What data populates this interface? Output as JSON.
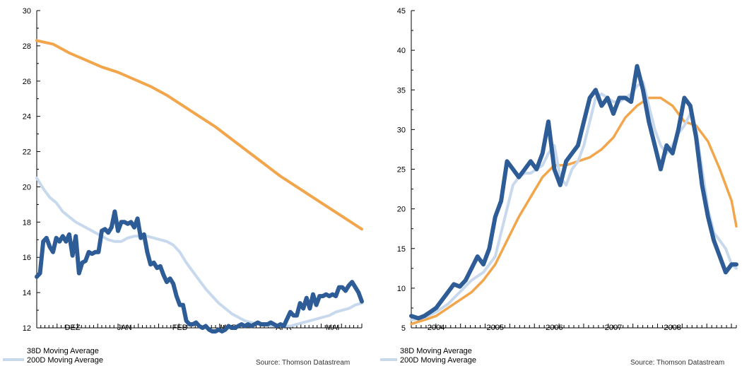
{
  "colors": {
    "price": "#2e5c97",
    "ma38": "#c8d9ee",
    "ma200": "#f2a54a"
  },
  "source": "Source: Thomson Datastream",
  "legend": [
    "38D Moving Average",
    "200D Moving Average"
  ],
  "chart_data": [
    {
      "type": "line",
      "name": "left",
      "ylim": [
        12,
        30
      ],
      "yticks": [
        12,
        14,
        16,
        18,
        20,
        22,
        24,
        26,
        28,
        30
      ],
      "xlim": [
        0,
        100
      ],
      "xticks": [
        {
          "pos": 11,
          "label": "DEZ"
        },
        {
          "pos": 27,
          "label": "JAN"
        },
        {
          "pos": 44,
          "label": "FEB"
        },
        {
          "pos": 59,
          "label": "MAR"
        },
        {
          "pos": 76,
          "label": "APR"
        },
        {
          "pos": 91,
          "label": "MAI"
        }
      ],
      "series": [
        {
          "key": "price",
          "x": [
            0,
            1,
            2,
            3,
            4,
            5,
            6,
            7,
            8,
            9,
            10,
            11,
            12,
            13,
            14,
            15,
            16,
            17,
            18,
            19,
            20,
            21,
            22,
            23,
            24,
            25,
            26,
            27,
            28,
            29,
            30,
            31,
            32,
            33,
            34,
            35,
            36,
            37,
            38,
            39,
            40,
            41,
            42,
            43,
            44,
            45,
            46,
            47,
            48,
            49,
            50,
            51,
            52,
            53,
            54,
            55,
            56,
            57,
            58,
            59,
            60,
            61,
            62,
            63,
            64,
            65,
            66,
            67,
            68,
            69,
            70,
            71,
            72,
            73,
            74,
            75,
            76,
            77,
            78,
            79,
            80,
            81,
            82,
            83,
            84,
            85,
            86,
            87,
            88,
            89,
            90,
            91,
            92,
            93,
            94,
            95,
            96,
            97,
            98,
            99,
            100
          ],
          "values": [
            14.9,
            15.1,
            16.9,
            17.1,
            16.6,
            16.3,
            17.1,
            16.9,
            17.2,
            16.9,
            17.3,
            16.1,
            17.2,
            15.1,
            15.7,
            15.8,
            16.3,
            16.2,
            16.3,
            16.3,
            17.5,
            17.6,
            17.4,
            17.7,
            18.6,
            17.5,
            18,
            18,
            17.9,
            18,
            17.7,
            18.2,
            17.1,
            17.3,
            16.3,
            15.6,
            15.7,
            15.4,
            15.5,
            15,
            14.6,
            14.8,
            14.5,
            13.8,
            13.3,
            13.3,
            12.4,
            12.2,
            12.2,
            12.3,
            12.1,
            12,
            12.1,
            11.9,
            11.8,
            11.8,
            11.9,
            11.8,
            11.9,
            12.1,
            12,
            12,
            12.1,
            12.2,
            12.1,
            12.2,
            12.1,
            12.2,
            12.3,
            12.2,
            12.2,
            12.2,
            12.3,
            12.2,
            12.1,
            12.2,
            12.1,
            12.5,
            12.9,
            12.7,
            12.7,
            13.4,
            13.1,
            13.7,
            13.1,
            13.9,
            13.3,
            13.8,
            13.8,
            13.9,
            13.8,
            13.9,
            13.8,
            14.3,
            14.3,
            14.1,
            14.4,
            14.6,
            14.3,
            14,
            13.5
          ]
        },
        {
          "key": "ma38",
          "x": [
            0,
            2,
            4,
            6,
            8,
            10,
            12,
            14,
            16,
            18,
            20,
            22,
            24,
            26,
            28,
            30,
            32,
            34,
            36,
            38,
            40,
            42,
            44,
            46,
            48,
            50,
            52,
            54,
            56,
            58,
            60,
            62,
            64,
            66,
            68,
            70,
            72,
            74,
            76,
            78,
            80,
            82,
            84,
            86,
            88,
            90,
            92,
            94,
            96,
            98,
            100
          ],
          "values": [
            20.5,
            19.9,
            19.4,
            19.1,
            18.6,
            18.3,
            18,
            17.8,
            17.6,
            17.4,
            17.2,
            17,
            16.9,
            16.9,
            17.1,
            17.2,
            17.2,
            17.2,
            17.1,
            17,
            16.9,
            16.7,
            16.3,
            15.7,
            15.2,
            14.7,
            14.2,
            13.8,
            13.4,
            13.1,
            12.8,
            12.6,
            12.4,
            12.3,
            12.2,
            12.2,
            12.1,
            12.1,
            12.1,
            12.1,
            12.2,
            12.3,
            12.4,
            12.5,
            12.6,
            12.7,
            12.9,
            13,
            13.1,
            13.3,
            13.4
          ]
        },
        {
          "key": "ma200",
          "x": [
            0,
            5,
            10,
            15,
            20,
            25,
            30,
            35,
            40,
            45,
            50,
            55,
            60,
            65,
            70,
            75,
            80,
            85,
            90,
            95,
            100
          ],
          "values": [
            28.3,
            28.1,
            27.6,
            27.2,
            26.8,
            26.5,
            26.1,
            25.7,
            25.2,
            24.6,
            24,
            23.4,
            22.7,
            22,
            21.3,
            20.6,
            20,
            19.4,
            18.8,
            18.2,
            17.6
          ]
        }
      ]
    },
    {
      "type": "line",
      "name": "right",
      "ylim": [
        5,
        45
      ],
      "yticks": [
        5,
        10,
        15,
        20,
        25,
        30,
        35,
        40,
        45
      ],
      "xlim": [
        2003.58,
        2009.08
      ],
      "xticks": [
        {
          "pos": 2004,
          "label": "2004"
        },
        {
          "pos": 2005,
          "label": "2005"
        },
        {
          "pos": 2006,
          "label": "2006"
        },
        {
          "pos": 2007,
          "label": "2007"
        },
        {
          "pos": 2008,
          "label": "2008"
        }
      ],
      "series": [
        {
          "key": "price",
          "x": [
            2003.58,
            2003.7,
            2003.8,
            2003.9,
            2004.0,
            2004.1,
            2004.2,
            2004.3,
            2004.4,
            2004.5,
            2004.6,
            2004.7,
            2004.8,
            2004.9,
            2005.0,
            2005.1,
            2005.2,
            2005.3,
            2005.4,
            2005.5,
            2005.6,
            2005.7,
            2005.8,
            2005.9,
            2006.0,
            2006.1,
            2006.2,
            2006.3,
            2006.4,
            2006.5,
            2006.6,
            2006.7,
            2006.8,
            2006.9,
            2007.0,
            2007.1,
            2007.2,
            2007.3,
            2007.4,
            2007.5,
            2007.6,
            2007.7,
            2007.8,
            2007.9,
            2008.0,
            2008.1,
            2008.2,
            2008.3,
            2008.4,
            2008.5,
            2008.6,
            2008.7,
            2008.8,
            2008.9,
            2009.0,
            2009.08
          ],
          "values": [
            6.5,
            6.2,
            6.5,
            7,
            7.5,
            8.5,
            9.5,
            10.5,
            10.2,
            11,
            12.5,
            14,
            13,
            15,
            19,
            21,
            26,
            25,
            24,
            25,
            26,
            25,
            27,
            31,
            25,
            23,
            26,
            27,
            28,
            31,
            34,
            35,
            33,
            34,
            32,
            34,
            34,
            33.5,
            38,
            35,
            31,
            28,
            25,
            28,
            27,
            30,
            34,
            33,
            29,
            23,
            19,
            16,
            14,
            12,
            13,
            13
          ]
        },
        {
          "key": "ma38",
          "x": [
            2003.58,
            2003.8,
            2004.0,
            2004.2,
            2004.4,
            2004.6,
            2004.8,
            2005.0,
            2005.1,
            2005.2,
            2005.3,
            2005.4,
            2005.5,
            2005.6,
            2005.7,
            2005.8,
            2005.9,
            2006.0,
            2006.1,
            2006.2,
            2006.3,
            2006.4,
            2006.5,
            2006.6,
            2006.7,
            2006.8,
            2006.9,
            2007.0,
            2007.1,
            2007.2,
            2007.3,
            2007.4,
            2007.5,
            2007.6,
            2007.7,
            2007.8,
            2007.9,
            2008.0,
            2008.1,
            2008.2,
            2008.3,
            2008.4,
            2008.5,
            2008.6,
            2008.7,
            2008.8,
            2008.9,
            2009.0,
            2009.08
          ],
          "values": [
            6,
            6.3,
            7,
            8,
            9.5,
            11,
            12,
            14,
            17,
            20,
            23,
            24,
            24.5,
            24.5,
            25,
            25.5,
            27,
            28,
            24,
            23,
            25,
            26,
            28,
            31,
            34,
            34.5,
            34,
            33.5,
            33.5,
            34,
            34.5,
            35.5,
            36,
            33,
            30,
            28,
            27,
            28,
            29.5,
            30.5,
            32,
            30,
            25,
            20,
            17,
            16,
            15,
            13,
            12.5
          ]
        },
        {
          "key": "ma200",
          "x": [
            2003.58,
            2003.8,
            2004.0,
            2004.2,
            2004.4,
            2004.6,
            2004.8,
            2005.0,
            2005.2,
            2005.4,
            2005.6,
            2005.8,
            2006.0,
            2006.2,
            2006.4,
            2006.6,
            2006.8,
            2007.0,
            2007.2,
            2007.4,
            2007.6,
            2007.8,
            2008.0,
            2008.2,
            2008.4,
            2008.6,
            2008.8,
            2009.0,
            2009.08
          ],
          "values": [
            5.5,
            6,
            6.5,
            7.5,
            8.5,
            9.5,
            11,
            13,
            16,
            19,
            21.5,
            24,
            25.5,
            25.5,
            26,
            26.5,
            27.5,
            29,
            31.5,
            33,
            34,
            34,
            33,
            31,
            30.5,
            28.5,
            25,
            21,
            17.8
          ]
        }
      ]
    }
  ]
}
